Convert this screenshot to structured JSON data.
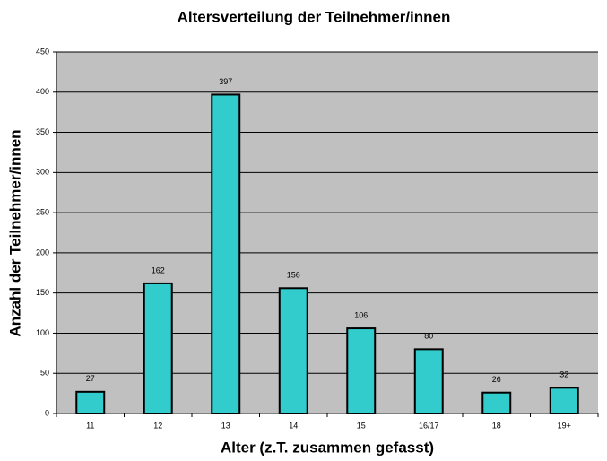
{
  "chart_data": {
    "type": "bar",
    "title": "Altersverteilung der Teilnehmer/innen",
    "x_label": "Alter (z.T. zusammen gefasst)",
    "y_label": "Anzahl der Teilnehmer/innen",
    "categories": [
      "11",
      "12",
      "13",
      "14",
      "15",
      "16/17",
      "18",
      "19+"
    ],
    "values": [
      27,
      162,
      397,
      156,
      106,
      80,
      26,
      32
    ],
    "color": "#33cccc",
    "ylim": [
      0,
      450
    ],
    "yticks": [
      0,
      50,
      100,
      150,
      200,
      250,
      300,
      350,
      400,
      450
    ],
    "grid": true
  }
}
